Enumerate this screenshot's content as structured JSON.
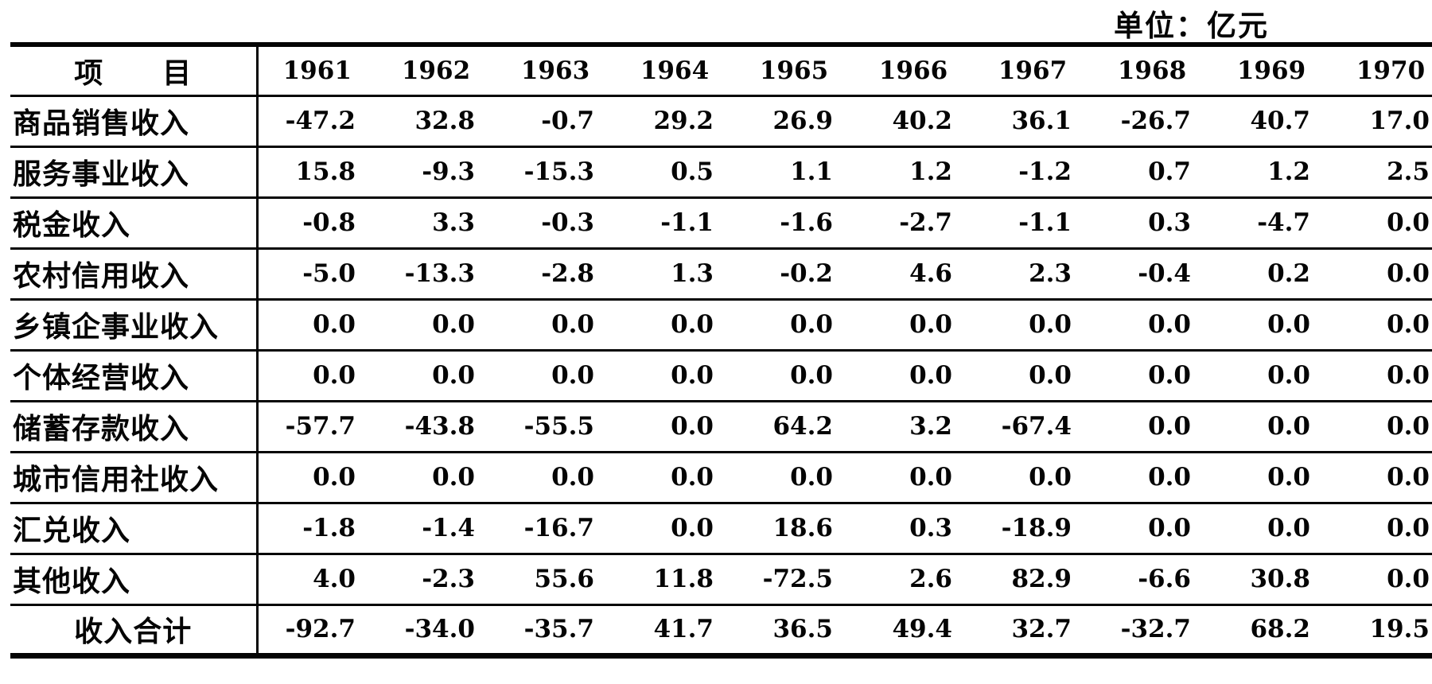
{
  "unit_label": "单位：亿元",
  "colors": {
    "ink": "#050505",
    "paper": "#ffffff"
  },
  "table": {
    "header": {
      "item_label": "项　　目",
      "years": [
        "1961",
        "1962",
        "1963",
        "1964",
        "1965",
        "1966",
        "1967",
        "1968",
        "1969",
        "1970"
      ]
    },
    "rows": [
      {
        "label": "商品销售收入",
        "values": [
          "-47.2",
          "32.8",
          "-0.7",
          "29.2",
          "26.9",
          "40.2",
          "36.1",
          "-26.7",
          "40.7",
          "17.0"
        ]
      },
      {
        "label": "服务事业收入",
        "values": [
          "15.8",
          "-9.3",
          "-15.3",
          "0.5",
          "1.1",
          "1.2",
          "-1.2",
          "0.7",
          "1.2",
          "2.5"
        ]
      },
      {
        "label": "税金收入",
        "values": [
          "-0.8",
          "3.3",
          "-0.3",
          "-1.1",
          "-1.6",
          "-2.7",
          "-1.1",
          "0.3",
          "-4.7",
          "0.0"
        ]
      },
      {
        "label": "农村信用收入",
        "values": [
          "-5.0",
          "-13.3",
          "-2.8",
          "1.3",
          "-0.2",
          "4.6",
          "2.3",
          "-0.4",
          "0.2",
          "0.0"
        ]
      },
      {
        "label": "乡镇企事业收入",
        "values": [
          "0.0",
          "0.0",
          "0.0",
          "0.0",
          "0.0",
          "0.0",
          "0.0",
          "0.0",
          "0.0",
          "0.0"
        ]
      },
      {
        "label": "个体经营收入",
        "values": [
          "0.0",
          "0.0",
          "0.0",
          "0.0",
          "0.0",
          "0.0",
          "0.0",
          "0.0",
          "0.0",
          "0.0"
        ]
      },
      {
        "label": "储蓄存款收入",
        "values": [
          "-57.7",
          "-43.8",
          "-55.5",
          "0.0",
          "64.2",
          "3.2",
          "-67.4",
          "0.0",
          "0.0",
          "0.0"
        ]
      },
      {
        "label": "城市信用社收入",
        "values": [
          "0.0",
          "0.0",
          "0.0",
          "0.0",
          "0.0",
          "0.0",
          "0.0",
          "0.0",
          "0.0",
          "0.0"
        ]
      },
      {
        "label": "汇兑收入",
        "values": [
          "-1.8",
          "-1.4",
          "-16.7",
          "0.0",
          "18.6",
          "0.3",
          "-18.9",
          "0.0",
          "0.0",
          "0.0"
        ]
      },
      {
        "label": "其他收入",
        "values": [
          "4.0",
          "-2.3",
          "55.6",
          "11.8",
          "-72.5",
          "2.6",
          "82.9",
          "-6.6",
          "30.8",
          "0.0"
        ]
      }
    ],
    "total_row": {
      "label": "收入合计",
      "values": [
        "-92.7",
        "-34.0",
        "-35.7",
        "41.7",
        "36.5",
        "49.4",
        "32.7",
        "-32.7",
        "68.2",
        "19.5"
      ]
    }
  }
}
